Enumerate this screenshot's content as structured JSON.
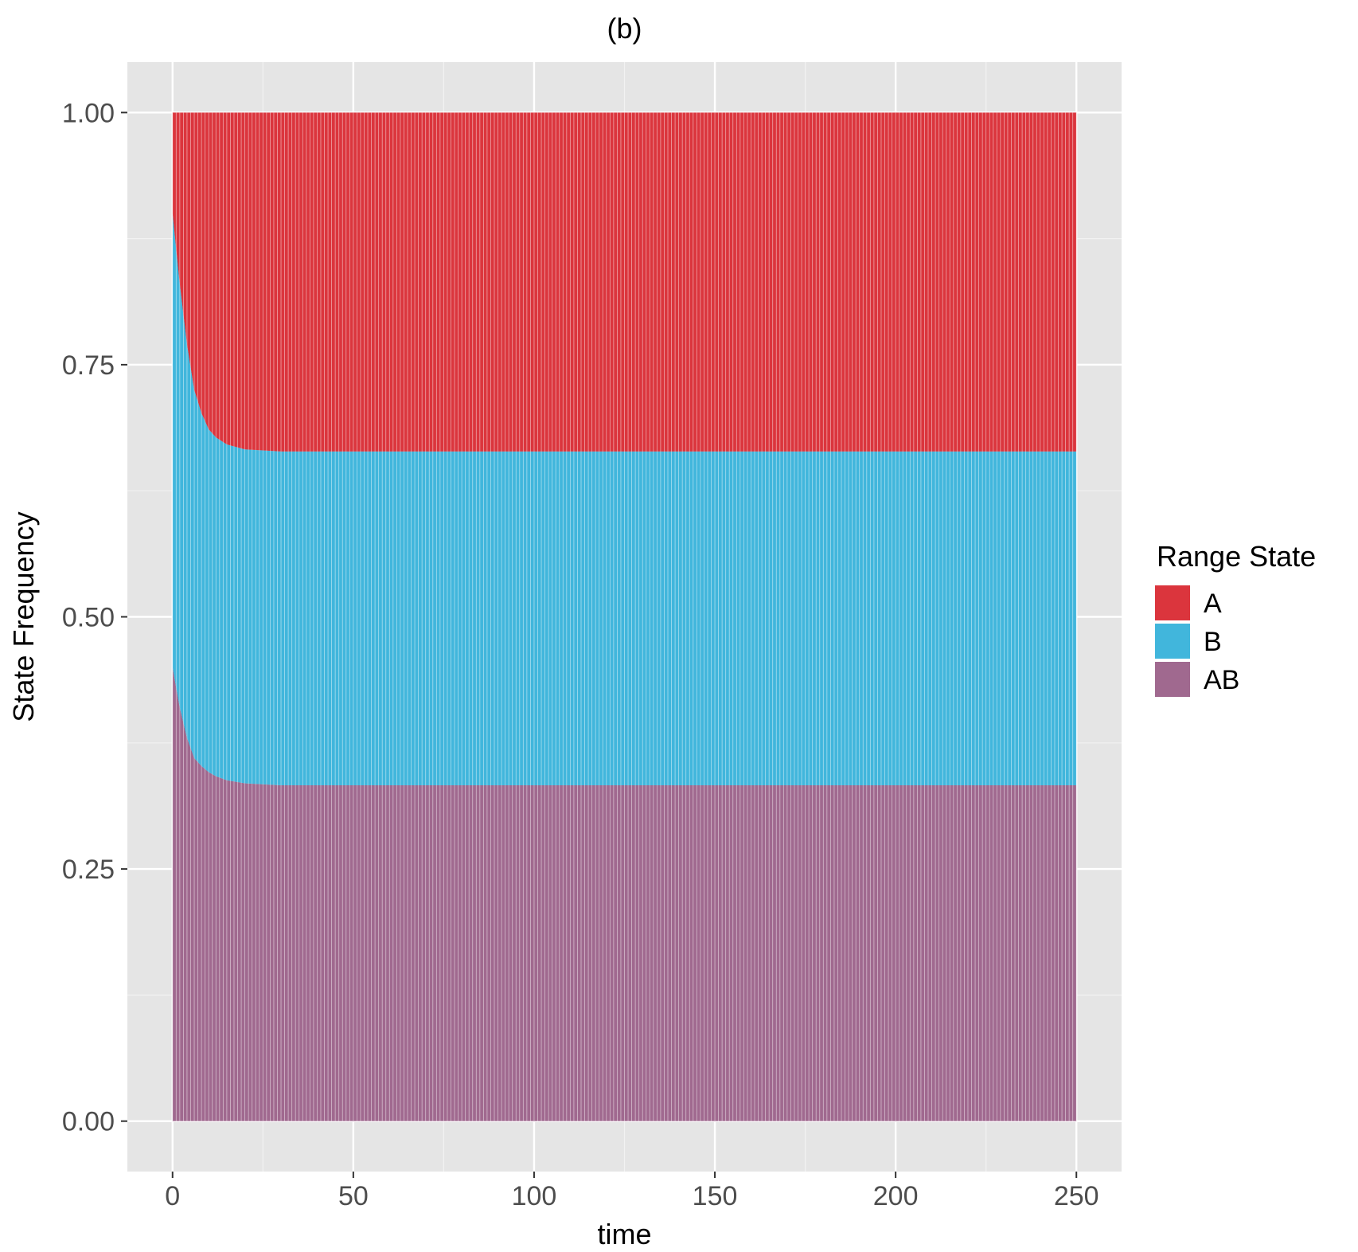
{
  "chart_data": {
    "type": "area",
    "stacked": true,
    "title": "(b)",
    "xlabel": "time",
    "ylabel": "State Frequency",
    "xlim": [
      -12.5,
      262.5
    ],
    "ylim": [
      -0.05,
      1.05
    ],
    "x_ticks": [
      0,
      50,
      100,
      150,
      200,
      250
    ],
    "x_tick_labels": [
      "0",
      "50",
      "100",
      "150",
      "200",
      "250"
    ],
    "y_ticks": [
      0,
      0.25,
      0.5,
      0.75,
      1.0
    ],
    "y_tick_labels": [
      "0.00",
      "0.25",
      "0.50",
      "0.75",
      "1.00"
    ],
    "grid": true,
    "legend": {
      "title": "Range State",
      "position": "right"
    },
    "x": [
      0,
      2,
      4,
      6,
      8,
      10,
      12,
      15,
      20,
      25,
      30,
      35,
      50,
      75,
      100,
      125,
      150,
      175,
      200,
      225,
      250
    ],
    "series": [
      {
        "name": "AB",
        "color": "#A0698F",
        "values": [
          0.45,
          0.41,
          0.38,
          0.36,
          0.352,
          0.346,
          0.342,
          0.338,
          0.335,
          0.334,
          0.333,
          0.333,
          0.333,
          0.333,
          0.333,
          0.333,
          0.333,
          0.333,
          0.333,
          0.333,
          0.333
        ]
      },
      {
        "name": "B",
        "color": "#41B6DC",
        "values": [
          0.45,
          0.42,
          0.39,
          0.365,
          0.35,
          0.34,
          0.336,
          0.333,
          0.331,
          0.331,
          0.331,
          0.331,
          0.331,
          0.331,
          0.331,
          0.331,
          0.331,
          0.331,
          0.331,
          0.331,
          0.331
        ]
      },
      {
        "name": "A",
        "color": "#DB353D",
        "values": [
          0.1,
          0.17,
          0.23,
          0.275,
          0.298,
          0.314,
          0.322,
          0.329,
          0.334,
          0.335,
          0.336,
          0.336,
          0.336,
          0.336,
          0.336,
          0.336,
          0.336,
          0.336,
          0.336,
          0.336,
          0.336
        ]
      }
    ]
  }
}
